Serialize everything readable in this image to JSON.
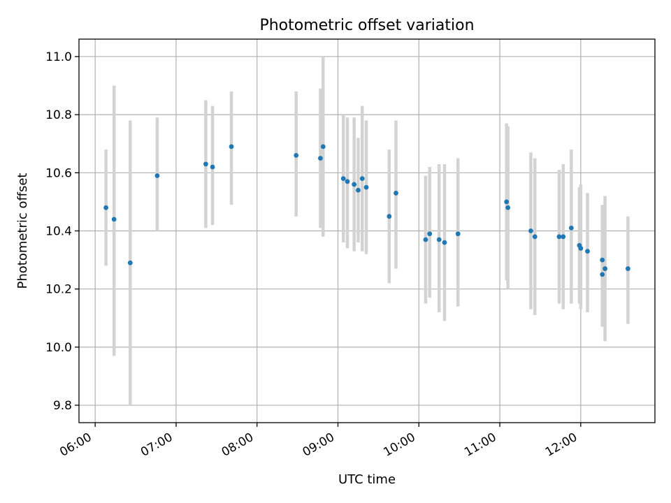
{
  "chart_data": {
    "type": "scatter",
    "title": "Photometric offset variation",
    "xlabel": "UTC time",
    "ylabel": "Photometric offset",
    "xlim": [
      "05:48",
      "12:55"
    ],
    "ylim": [
      9.74,
      11.06
    ],
    "xticks": [
      "06:00",
      "07:00",
      "08:00",
      "09:00",
      "10:00",
      "11:00",
      "12:00"
    ],
    "yticks": [
      9.8,
      10.0,
      10.2,
      10.4,
      10.6,
      10.8,
      11.0
    ],
    "ytick_labels": [
      "9.8",
      "10.0",
      "10.2",
      "10.4",
      "10.6",
      "10.8",
      "11.0"
    ],
    "grid": true,
    "marker_color": "#1f77b4",
    "errorbar_color": "#d3d3d3",
    "points": [
      {
        "x": "06:08",
        "y": 10.48,
        "err_low": 10.28,
        "err_high": 10.68
      },
      {
        "x": "06:14",
        "y": 10.44,
        "err_low": 9.97,
        "err_high": 10.9
      },
      {
        "x": "06:26",
        "y": 10.29,
        "err_low": 9.8,
        "err_high": 10.78
      },
      {
        "x": "06:46",
        "y": 10.59,
        "err_low": 10.4,
        "err_high": 10.79
      },
      {
        "x": "07:22",
        "y": 10.63,
        "err_low": 10.41,
        "err_high": 10.85
      },
      {
        "x": "07:27",
        "y": 10.62,
        "err_low": 10.42,
        "err_high": 10.83
      },
      {
        "x": "07:41",
        "y": 10.69,
        "err_low": 10.49,
        "err_high": 10.88
      },
      {
        "x": "08:29",
        "y": 10.66,
        "err_low": 10.45,
        "err_high": 10.88
      },
      {
        "x": "08:47",
        "y": 10.65,
        "err_low": 10.41,
        "err_high": 10.89
      },
      {
        "x": "08:49",
        "y": 10.69,
        "err_low": 10.38,
        "err_high": 11.0
      },
      {
        "x": "09:04",
        "y": 10.58,
        "err_low": 10.36,
        "err_high": 10.8
      },
      {
        "x": "09:07",
        "y": 10.57,
        "err_low": 10.34,
        "err_high": 10.79
      },
      {
        "x": "09:12",
        "y": 10.56,
        "err_low": 10.33,
        "err_high": 10.79
      },
      {
        "x": "09:15",
        "y": 10.54,
        "err_low": 10.36,
        "err_high": 10.72
      },
      {
        "x": "09:18",
        "y": 10.58,
        "err_low": 10.33,
        "err_high": 10.83
      },
      {
        "x": "09:21",
        "y": 10.55,
        "err_low": 10.32,
        "err_high": 10.78
      },
      {
        "x": "09:38",
        "y": 10.45,
        "err_low": 10.22,
        "err_high": 10.68
      },
      {
        "x": "09:43",
        "y": 10.53,
        "err_low": 10.27,
        "err_high": 10.78
      },
      {
        "x": "10:05",
        "y": 10.37,
        "err_low": 10.15,
        "err_high": 10.59
      },
      {
        "x": "10:08",
        "y": 10.39,
        "err_low": 10.17,
        "err_high": 10.62
      },
      {
        "x": "10:15",
        "y": 10.37,
        "err_low": 10.12,
        "err_high": 10.63
      },
      {
        "x": "10:19",
        "y": 10.36,
        "err_low": 10.09,
        "err_high": 10.63
      },
      {
        "x": "10:29",
        "y": 10.39,
        "err_low": 10.14,
        "err_high": 10.65
      },
      {
        "x": "11:05",
        "y": 10.5,
        "err_low": 10.23,
        "err_high": 10.77
      },
      {
        "x": "11:06",
        "y": 10.48,
        "err_low": 10.2,
        "err_high": 10.76
      },
      {
        "x": "11:23",
        "y": 10.4,
        "err_low": 10.13,
        "err_high": 10.67
      },
      {
        "x": "11:26",
        "y": 10.38,
        "err_low": 10.11,
        "err_high": 10.65
      },
      {
        "x": "11:44",
        "y": 10.38,
        "err_low": 10.15,
        "err_high": 10.61
      },
      {
        "x": "11:47",
        "y": 10.38,
        "err_low": 10.13,
        "err_high": 10.63
      },
      {
        "x": "11:53",
        "y": 10.41,
        "err_low": 10.15,
        "err_high": 10.68
      },
      {
        "x": "11:59",
        "y": 10.35,
        "err_low": 10.15,
        "err_high": 10.55
      },
      {
        "x": "12:00",
        "y": 10.34,
        "err_low": 10.13,
        "err_high": 10.56
      },
      {
        "x": "12:05",
        "y": 10.33,
        "err_low": 10.12,
        "err_high": 10.53
      },
      {
        "x": "12:16",
        "y": 10.3,
        "err_low": 10.1,
        "err_high": 10.49
      },
      {
        "x": "12:16",
        "y": 10.25,
        "err_low": 10.07,
        "err_high": 10.43
      },
      {
        "x": "12:18",
        "y": 10.27,
        "err_low": 10.02,
        "err_high": 10.52
      },
      {
        "x": "12:35",
        "y": 10.27,
        "err_low": 10.08,
        "err_high": 10.45
      }
    ]
  }
}
